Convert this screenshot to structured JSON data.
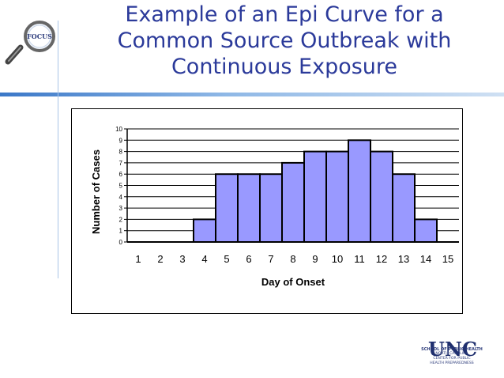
{
  "slide": {
    "title_lines": [
      "Example of an Epi Curve for a",
      "Common Source Outbreak with",
      "Continuous Exposure"
    ]
  },
  "logos": {
    "focus": "FOCUS",
    "unc_mark": "UNC",
    "unc_school": "SCHOOL OF PUBLIC HEALTH",
    "unc_center_lines": [
      "NORTH CAROLINA",
      "CENTER FOR PUBLIC",
      "HEALTH PREPAREDNESS"
    ]
  },
  "colors": {
    "title": "#2b3a9a",
    "bar_fill": "#9999ff",
    "bar_stroke": "#000000",
    "grid": "#000000"
  },
  "chart_data": {
    "type": "bar",
    "title": "",
    "xlabel": "Day of Onset",
    "ylabel": "Number of Cases",
    "categories": [
      "1",
      "2",
      "3",
      "4",
      "5",
      "6",
      "7",
      "8",
      "9",
      "10",
      "11",
      "12",
      "13",
      "14",
      "15"
    ],
    "values": [
      0,
      0,
      0,
      2,
      6,
      6,
      6,
      7,
      8,
      8,
      9,
      8,
      6,
      2,
      0
    ],
    "ylim": [
      0,
      10
    ],
    "yticks": [
      "0",
      "1",
      "2",
      "3",
      "4",
      "5",
      "6",
      "7",
      "8",
      "9",
      "10"
    ],
    "grid": true,
    "legend": "none"
  }
}
